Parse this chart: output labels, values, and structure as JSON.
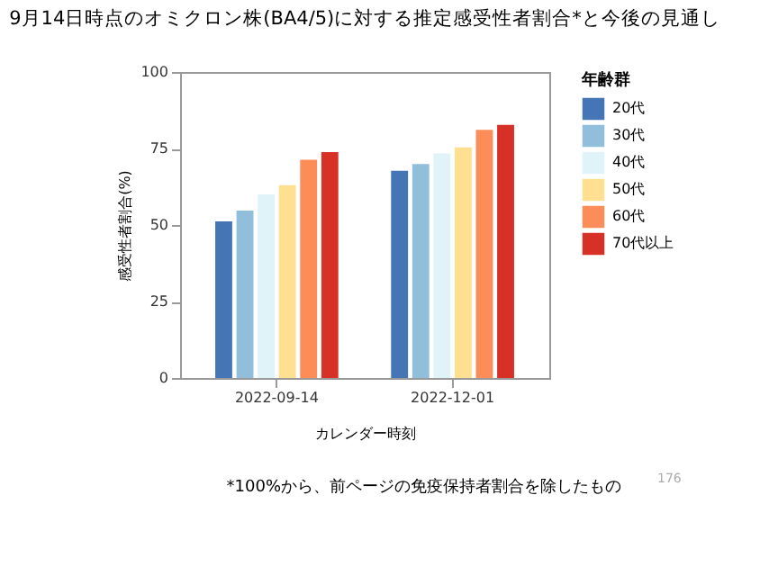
{
  "chart_data": {
    "type": "bar",
    "title": "9月14日時点のオミクロン株(BA4/5)に対する推定感受性者割合*と今後の見通し",
    "xlabel": "カレンダー時刻",
    "ylabel": "感受性者割合(%)",
    "legend_title": "年齢群",
    "categories": [
      "2022-09-14",
      "2022-12-01"
    ],
    "series": [
      {
        "name": "20代",
        "color": "#4575b4",
        "values": [
          51.2,
          67.7
        ]
      },
      {
        "name": "30代",
        "color": "#91bfdb",
        "values": [
          54.7,
          69.9
        ]
      },
      {
        "name": "40代",
        "color": "#e0f3f8",
        "values": [
          60,
          73.4
        ]
      },
      {
        "name": "50代",
        "color": "#fee090",
        "values": [
          63,
          75.4
        ]
      },
      {
        "name": "60代",
        "color": "#fc8d59",
        "values": [
          71.3,
          81.1
        ]
      },
      {
        "name": "70代以上",
        "color": "#d73027",
        "values": [
          73.8,
          82.7
        ]
      }
    ],
    "ylim": [
      0,
      100
    ],
    "yticks": [
      0,
      25,
      50,
      75,
      100
    ],
    "grid": false,
    "legend": "right",
    "annotations": [
      "*100%から、前ページの免疫保持者割合を除したもの",
      "176"
    ]
  }
}
